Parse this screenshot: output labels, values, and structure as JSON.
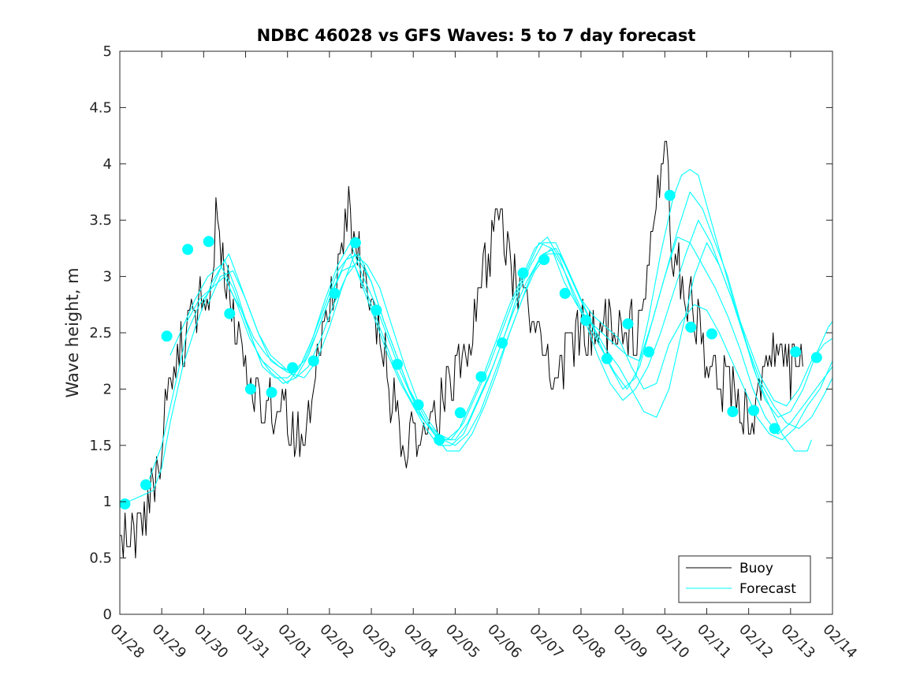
{
  "chart_data": {
    "type": "line",
    "title": "NDBC 46028 vs GFS Waves: 5 to 7 day forecast",
    "xlabel": "",
    "ylabel": "Wave height, m",
    "x_unit": "days since 01/28",
    "xlim": [
      0,
      17
    ],
    "ylim": [
      0,
      5
    ],
    "xticks": [
      0,
      1,
      2,
      3,
      4,
      5,
      6,
      7,
      8,
      9,
      10,
      11,
      12,
      13,
      14,
      15,
      16,
      17
    ],
    "xtick_labels": [
      "01/28",
      "01/29",
      "01/30",
      "01/31",
      "02/01",
      "02/02",
      "02/03",
      "02/04",
      "02/05",
      "02/06",
      "02/07",
      "02/08",
      "02/09",
      "02/10",
      "02/11",
      "02/12",
      "02/13",
      "02/14"
    ],
    "yticks": [
      0,
      0.5,
      1,
      1.5,
      2,
      2.5,
      3,
      3.5,
      4,
      4.5,
      5
    ],
    "ytick_labels": [
      "0",
      "0.5",
      "1",
      "1.5",
      "2",
      "2.5",
      "3",
      "3.5",
      "4",
      "4.5",
      "5"
    ],
    "grid": false,
    "legend": {
      "position": "bottom-right",
      "entries": [
        "Buoy",
        "Forecast"
      ]
    },
    "colors": {
      "buoy": "#000000",
      "forecast": "#00ffff",
      "axis": "#262626"
    },
    "buoy_anchors": {
      "x": [
        0,
        0.15,
        0.3,
        0.5,
        0.7,
        1.0,
        1.2,
        1.5,
        1.8,
        2.0,
        2.2,
        2.35,
        2.5,
        2.7,
        3.0,
        3.2,
        3.5,
        3.7,
        4.0,
        4.2,
        4.4,
        4.6,
        4.8,
        5.0,
        5.2,
        5.4,
        5.6,
        5.8,
        5.95,
        6.1,
        6.3,
        6.5,
        6.7,
        7.0,
        7.3,
        7.6,
        7.8,
        8.0,
        8.2,
        8.4,
        8.6,
        8.8,
        9.0,
        9.2,
        9.5,
        9.8,
        10.0,
        10.1,
        10.3,
        10.5,
        10.7,
        11.0,
        11.3,
        11.5,
        11.7,
        12.0,
        12.2,
        12.4,
        12.6,
        12.8,
        13.0,
        13.2,
        13.4,
        13.6,
        13.8,
        14.0,
        14.2,
        14.35,
        14.5,
        14.65,
        14.8,
        15.0,
        15.2,
        15.4,
        15.6,
        15.8,
        16.0,
        16.2,
        16.3
      ],
      "y": [
        0.8,
        0.75,
        0.7,
        0.8,
        1.0,
        1.5,
        2.1,
        2.4,
        2.7,
        2.9,
        3.05,
        3.6,
        3.0,
        2.7,
        2.3,
        1.9,
        1.8,
        1.85,
        1.75,
        1.6,
        1.7,
        2.0,
        2.4,
        2.8,
        3.1,
        3.5,
        3.5,
        3.1,
        2.9,
        2.6,
        2.3,
        1.9,
        1.6,
        1.5,
        1.45,
        1.8,
        2.0,
        2.1,
        2.3,
        2.5,
        2.9,
        3.2,
        3.6,
        3.3,
        2.9,
        2.6,
        2.4,
        2.3,
        2.2,
        2.1,
        2.3,
        2.5,
        2.6,
        2.5,
        2.55,
        2.5,
        2.55,
        2.5,
        3.0,
        3.5,
        4.2,
        3.2,
        3.0,
        2.8,
        2.6,
        2.3,
        2.1,
        2.0,
        2.05,
        1.95,
        1.8,
        1.75,
        1.9,
        2.3,
        2.2,
        2.3,
        2.2,
        2.35,
        2.4
      ]
    },
    "forecast_runs": [
      {
        "x": [
          0.2,
          0.5,
          0.8,
          1.0,
          1.2,
          1.5,
          1.8,
          2.0,
          2.2,
          2.6,
          3.0,
          3.3,
          3.6,
          4.0,
          4.4,
          4.7,
          5.0,
          5.3,
          5.6,
          5.9,
          6.2,
          6.5,
          6.8,
          7.1,
          7.4,
          7.7,
          8.0,
          8.3,
          8.6,
          8.9,
          9.2,
          9.5,
          9.8,
          10.1,
          10.4,
          10.7,
          11.0,
          11.3,
          11.6,
          11.9,
          12.2,
          12.5,
          12.8,
          13.1,
          13.4,
          13.7,
          14.0,
          14.3,
          14.6,
          14.9,
          15.2,
          15.5,
          15.8,
          16.1,
          16.4,
          16.7,
          17.0
        ],
        "y": [
          1.0,
          1.05,
          1.1,
          1.3,
          1.7,
          2.2,
          2.55,
          2.75,
          2.95,
          3.2,
          2.8,
          2.5,
          2.25,
          2.15,
          2.1,
          2.25,
          2.55,
          2.9,
          3.2,
          3.1,
          2.9,
          2.55,
          2.2,
          1.9,
          1.7,
          1.55,
          1.5,
          1.6,
          1.8,
          2.1,
          2.4,
          2.7,
          3.0,
          3.2,
          3.25,
          3.05,
          2.8,
          2.65,
          2.55,
          2.45,
          2.2,
          2.0,
          2.05,
          2.4,
          2.6,
          2.75,
          2.7,
          2.5,
          2.25,
          2.0,
          1.75,
          1.6,
          1.55,
          1.65,
          1.85,
          2.0,
          2.25
        ]
      },
      {
        "x": [
          0.7,
          1.0,
          1.3,
          1.6,
          1.9,
          2.2,
          2.5,
          2.8,
          3.1,
          3.4,
          3.7,
          4.0,
          4.3,
          4.6,
          4.9,
          5.2,
          5.5,
          5.8,
          6.1,
          6.4,
          6.7,
          7.0,
          7.3,
          7.6,
          7.9,
          8.2,
          8.5,
          8.8,
          9.1,
          9.4,
          9.7,
          10.0,
          10.3,
          10.6,
          10.9,
          11.2,
          11.5,
          11.8,
          12.1,
          12.4,
          12.7,
          13.0,
          13.3,
          13.6,
          13.9,
          14.2,
          14.5,
          14.8,
          15.1,
          15.4,
          15.7,
          16.0,
          16.3,
          16.6,
          16.9,
          17.0
        ],
        "y": [
          1.2,
          1.5,
          2.0,
          2.5,
          2.75,
          2.9,
          3.15,
          2.85,
          2.5,
          2.2,
          2.1,
          2.1,
          2.2,
          2.45,
          2.8,
          3.1,
          3.3,
          3.0,
          2.75,
          2.45,
          2.15,
          1.9,
          1.7,
          1.6,
          1.55,
          1.7,
          1.95,
          2.2,
          2.5,
          2.8,
          3.05,
          3.3,
          3.25,
          2.95,
          2.75,
          2.6,
          2.5,
          2.4,
          2.3,
          2.25,
          2.6,
          3.0,
          3.35,
          3.3,
          3.1,
          2.9,
          2.65,
          2.35,
          2.0,
          1.75,
          1.6,
          1.7,
          1.85,
          2.0,
          2.15,
          2.2
        ]
      },
      {
        "x": [
          1.2,
          1.5,
          1.8,
          2.1,
          2.4,
          2.7,
          3.0,
          3.3,
          3.6,
          3.9,
          4.2,
          4.5,
          4.8,
          5.1,
          5.4,
          5.7,
          6.0,
          6.3,
          6.6,
          6.9,
          7.2,
          7.5,
          7.8,
          8.1,
          8.4,
          8.7,
          9.0,
          9.3,
          9.6,
          9.9,
          10.2,
          10.5,
          10.8,
          11.1,
          11.4,
          11.7,
          12.0,
          12.3,
          12.6,
          12.9,
          13.2,
          13.5,
          13.8,
          14.1,
          14.4,
          14.7,
          15.0,
          15.3,
          15.6,
          15.9,
          16.2,
          16.5,
          16.8,
          17.0
        ],
        "y": [
          2.3,
          2.55,
          2.8,
          3.0,
          3.1,
          2.9,
          2.6,
          2.3,
          2.15,
          2.05,
          2.1,
          2.3,
          2.6,
          2.9,
          3.15,
          3.2,
          2.95,
          2.6,
          2.3,
          2.0,
          1.75,
          1.6,
          1.55,
          1.65,
          1.9,
          2.15,
          2.45,
          2.75,
          3.0,
          3.25,
          3.35,
          3.15,
          2.85,
          2.6,
          2.3,
          2.05,
          1.9,
          2.0,
          2.2,
          2.5,
          2.85,
          3.2,
          3.5,
          3.3,
          3.0,
          2.7,
          2.4,
          2.1,
          1.9,
          1.85,
          2.0,
          2.25,
          2.4,
          2.45
        ]
      },
      {
        "x": [
          1.6,
          1.9,
          2.2,
          2.5,
          2.8,
          3.1,
          3.4,
          3.7,
          4.0,
          4.3,
          4.6,
          4.9,
          5.2,
          5.5,
          5.8,
          6.1,
          6.4,
          6.7,
          7.0,
          7.3,
          7.6,
          7.9,
          8.2,
          8.5,
          8.8,
          9.1,
          9.4,
          9.7,
          10.0,
          10.3,
          10.6,
          10.9,
          11.2,
          11.5,
          11.8,
          12.1,
          12.4,
          12.7,
          13.0,
          13.3,
          13.6,
          13.9,
          14.2,
          14.5,
          14.8,
          15.1,
          15.4,
          15.7,
          16.0,
          16.3,
          16.6,
          16.9,
          17.0
        ],
        "y": [
          2.6,
          2.8,
          2.9,
          3.0,
          2.75,
          2.45,
          2.25,
          2.15,
          2.05,
          2.2,
          2.45,
          2.75,
          3.05,
          3.2,
          2.9,
          2.6,
          2.3,
          2.05,
          1.85,
          1.65,
          1.5,
          1.5,
          1.6,
          1.85,
          2.1,
          2.4,
          2.7,
          2.95,
          3.15,
          3.25,
          3.05,
          2.8,
          2.55,
          2.35,
          2.15,
          2.0,
          2.2,
          2.6,
          3.0,
          3.4,
          3.75,
          3.6,
          3.3,
          3.0,
          2.6,
          2.2,
          1.9,
          1.75,
          1.8,
          2.0,
          2.3,
          2.55,
          2.6
        ]
      },
      {
        "x": [
          2.1,
          2.4,
          2.7,
          3.0,
          3.3,
          3.6,
          3.9,
          4.2,
          4.5,
          4.8,
          5.1,
          5.4,
          5.7,
          6.0,
          6.3,
          6.6,
          6.9,
          7.2,
          7.5,
          7.8,
          8.1,
          8.4,
          8.7,
          9.0,
          9.3,
          9.6,
          9.9,
          10.2,
          10.5,
          10.8,
          11.1,
          11.4,
          11.7,
          12.0,
          12.3,
          12.6,
          12.9,
          13.2,
          13.4,
          13.6,
          13.8,
          14.1,
          14.4,
          14.7,
          15.0,
          15.3,
          15.6,
          15.9,
          16.2,
          16.5,
          16.8,
          17.0
        ],
        "y": [
          2.75,
          3.0,
          3.05,
          2.8,
          2.5,
          2.3,
          2.2,
          2.1,
          2.2,
          2.45,
          2.75,
          3.0,
          3.15,
          2.95,
          2.6,
          2.3,
          2.0,
          1.8,
          1.6,
          1.45,
          1.45,
          1.6,
          1.85,
          2.15,
          2.5,
          2.8,
          3.05,
          3.2,
          3.2,
          2.95,
          2.7,
          2.45,
          2.2,
          2.0,
          2.1,
          2.6,
          3.2,
          3.7,
          3.9,
          3.95,
          3.9,
          3.5,
          3.1,
          2.7,
          2.35,
          2.05,
          1.85,
          1.7,
          1.65,
          1.75,
          1.95,
          2.1
        ]
      },
      {
        "x": [
          2.6,
          2.9,
          3.2,
          3.5,
          3.8,
          4.1,
          4.4,
          4.7,
          5.0,
          5.3,
          5.6,
          5.9,
          6.2,
          6.5,
          6.8,
          7.1,
          7.4,
          7.7,
          8.0,
          8.3,
          8.6,
          8.9,
          9.2,
          9.5,
          9.8,
          10.1,
          10.4,
          10.7,
          11.0,
          11.3,
          11.6,
          11.9,
          12.2,
          12.5,
          12.8,
          13.1,
          13.4,
          13.7,
          14.0,
          14.3,
          14.6,
          14.9,
          15.2,
          15.5,
          15.8,
          16.1,
          16.4,
          16.5
        ],
        "y": [
          2.9,
          2.7,
          2.45,
          2.3,
          2.2,
          2.15,
          2.25,
          2.5,
          2.8,
          3.05,
          3.1,
          2.85,
          2.55,
          2.25,
          2.0,
          1.8,
          1.65,
          1.55,
          1.55,
          1.7,
          1.95,
          2.2,
          2.5,
          2.85,
          3.1,
          3.3,
          3.3,
          3.05,
          2.8,
          2.55,
          2.35,
          2.2,
          2.0,
          1.8,
          1.75,
          2.0,
          2.5,
          3.0,
          3.3,
          3.1,
          2.8,
          2.45,
          2.1,
          1.85,
          1.6,
          1.45,
          1.45,
          1.55
        ]
      }
    ],
    "forecast_markers": {
      "x": [
        0.12,
        0.62,
        1.12,
        1.62,
        2.12,
        2.62,
        3.12,
        3.62,
        4.12,
        4.62,
        5.12,
        5.62,
        6.12,
        6.62,
        7.12,
        7.62,
        8.12,
        8.62,
        9.12,
        9.62,
        10.12,
        10.62,
        11.12,
        11.62,
        12.12,
        12.62,
        13.12,
        13.62,
        14.12,
        14.62,
        15.12,
        15.62,
        16.12,
        16.62
      ],
      "y": [
        0.98,
        1.15,
        2.47,
        3.24,
        3.31,
        2.67,
        2.0,
        1.97,
        2.19,
        2.25,
        2.85,
        3.3,
        2.7,
        2.22,
        1.86,
        1.55,
        1.79,
        2.11,
        2.41,
        3.03,
        3.15,
        2.85,
        2.61,
        2.27,
        2.58,
        2.33,
        3.72,
        2.55,
        2.49,
        1.8,
        1.81,
        1.65,
        2.33,
        2.28
      ]
    }
  }
}
